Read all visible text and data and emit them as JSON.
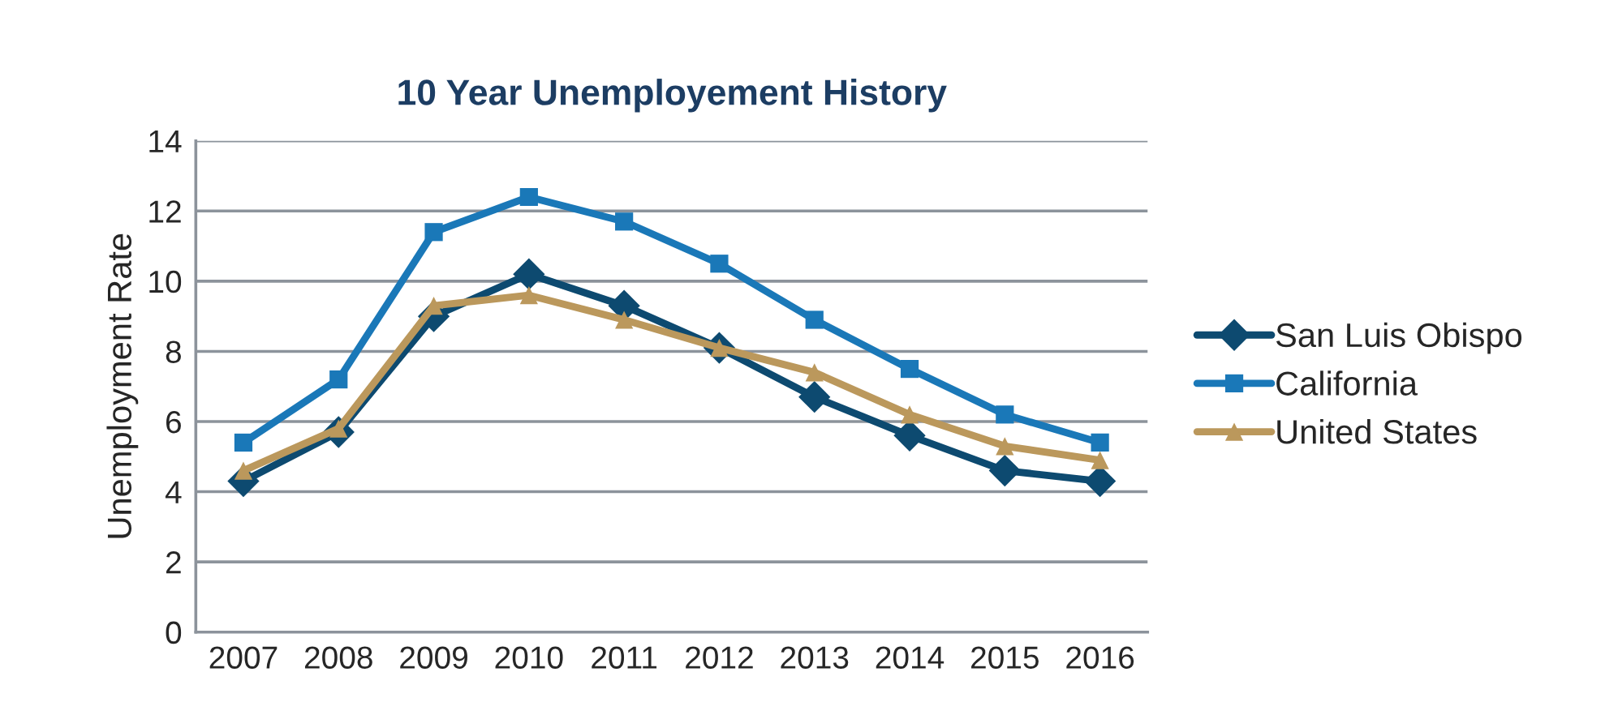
{
  "chart_data": {
    "type": "line",
    "title": "10 Year Unemployement History",
    "ylabel": "Unemployment Rate",
    "categories": [
      "2007",
      "2008",
      "2009",
      "2010",
      "2011",
      "2012",
      "2013",
      "2014",
      "2015",
      "2016"
    ],
    "series": [
      {
        "name": "San Luis Obispo",
        "color": "#0d4a70",
        "marker": "diamond",
        "values": [
          4.3,
          5.7,
          9.0,
          10.2,
          9.3,
          8.1,
          6.7,
          5.6,
          4.6,
          4.3
        ]
      },
      {
        "name": "California",
        "color": "#1a78b8",
        "marker": "square",
        "values": [
          5.4,
          7.2,
          11.4,
          12.4,
          11.7,
          10.5,
          8.9,
          7.5,
          6.2,
          5.4
        ]
      },
      {
        "name": "United States",
        "color": "#bb985c",
        "marker": "triangle",
        "values": [
          4.6,
          5.8,
          9.3,
          9.6,
          8.9,
          8.1,
          7.4,
          6.2,
          5.3,
          4.9
        ]
      }
    ],
    "ylim": [
      0,
      14
    ],
    "yticks": [
      0,
      2,
      4,
      6,
      8,
      10,
      12,
      14
    ],
    "grid": "y",
    "legend": "right",
    "line_style": "solid"
  }
}
